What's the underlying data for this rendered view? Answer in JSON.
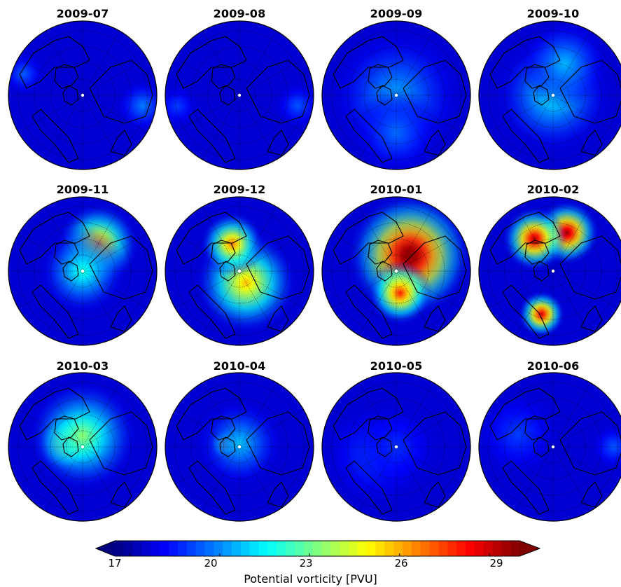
{
  "chart_data": {
    "type": "heatmap",
    "title": "",
    "panels": [
      {
        "title": "2009-07",
        "blobs": [
          {
            "lon": 100,
            "r": 0.82,
            "spread": 0.18,
            "value": 19.8
          },
          {
            "lon": 290,
            "r": 0.85,
            "spread": 0.15,
            "value": 19.4
          }
        ]
      },
      {
        "title": "2009-08",
        "blobs": [
          {
            "lon": 100,
            "r": 0.8,
            "spread": 0.16,
            "value": 19.3
          },
          {
            "lon": 260,
            "r": 0.85,
            "spread": 0.15,
            "value": 19.0
          }
        ]
      },
      {
        "title": "2009-09",
        "blobs": [
          {
            "lon": 0,
            "r": 0.0,
            "spread": 0.45,
            "value": 20.4
          },
          {
            "lon": 180,
            "r": 0.5,
            "spread": 0.3,
            "value": 19.6
          }
        ]
      },
      {
        "title": "2009-10",
        "blobs": [
          {
            "lon": 0,
            "r": 0.0,
            "spread": 0.4,
            "value": 21.4
          },
          {
            "lon": 20,
            "r": 0.45,
            "spread": 0.3,
            "value": 20.6
          }
        ]
      },
      {
        "title": "2009-11",
        "blobs": [
          {
            "lon": 30,
            "r": 0.42,
            "spread": 0.28,
            "value": 26.3
          },
          {
            "lon": 0,
            "r": 0.0,
            "spread": 0.3,
            "value": 22.0
          }
        ]
      },
      {
        "title": "2009-12",
        "blobs": [
          {
            "lon": 150,
            "r": 0.18,
            "spread": 0.35,
            "value": 25.8
          },
          {
            "lon": 345,
            "r": 0.38,
            "spread": 0.22,
            "value": 26.8
          }
        ]
      },
      {
        "title": "2010-01",
        "blobs": [
          {
            "lon": 40,
            "r": 0.28,
            "spread": 0.42,
            "value": 31.0
          },
          {
            "lon": 170,
            "r": 0.3,
            "spread": 0.22,
            "value": 28.0
          }
        ]
      },
      {
        "title": "2010-02",
        "blobs": [
          {
            "lon": 20,
            "r": 0.55,
            "spread": 0.22,
            "value": 29.8
          },
          {
            "lon": 330,
            "r": 0.5,
            "spread": 0.22,
            "value": 29.5
          },
          {
            "lon": 195,
            "r": 0.6,
            "spread": 0.16,
            "value": 29.0
          }
        ]
      },
      {
        "title": "2010-03",
        "blobs": [
          {
            "lon": 285,
            "r": 0.22,
            "spread": 0.2,
            "value": 27.8
          },
          {
            "lon": 0,
            "r": 0.15,
            "spread": 0.38,
            "value": 23.5
          }
        ]
      },
      {
        "title": "2010-04",
        "blobs": [
          {
            "lon": 280,
            "r": 0.2,
            "spread": 0.1,
            "value": 27.0
          },
          {
            "lon": 0,
            "r": 0.05,
            "spread": 0.3,
            "value": 20.8
          }
        ]
      },
      {
        "title": "2010-05",
        "blobs": [
          {
            "lon": 250,
            "r": 0.3,
            "spread": 0.35,
            "value": 19.2
          },
          {
            "lon": 0,
            "r": 0.0,
            "spread": 0.3,
            "value": 18.8
          }
        ]
      },
      {
        "title": "2010-06",
        "blobs": [
          {
            "lon": 90,
            "r": 0.82,
            "spread": 0.16,
            "value": 19.3
          },
          {
            "lon": 290,
            "r": 0.5,
            "spread": 0.3,
            "value": 19.0
          }
        ]
      }
    ],
    "colorbar": {
      "min": 16.5,
      "max": 30,
      "ticks": [
        "17",
        "20",
        "23",
        "26",
        "29"
      ],
      "label": "Potential vorticity [PVU]",
      "colormap": "jet",
      "extend": "both"
    }
  }
}
